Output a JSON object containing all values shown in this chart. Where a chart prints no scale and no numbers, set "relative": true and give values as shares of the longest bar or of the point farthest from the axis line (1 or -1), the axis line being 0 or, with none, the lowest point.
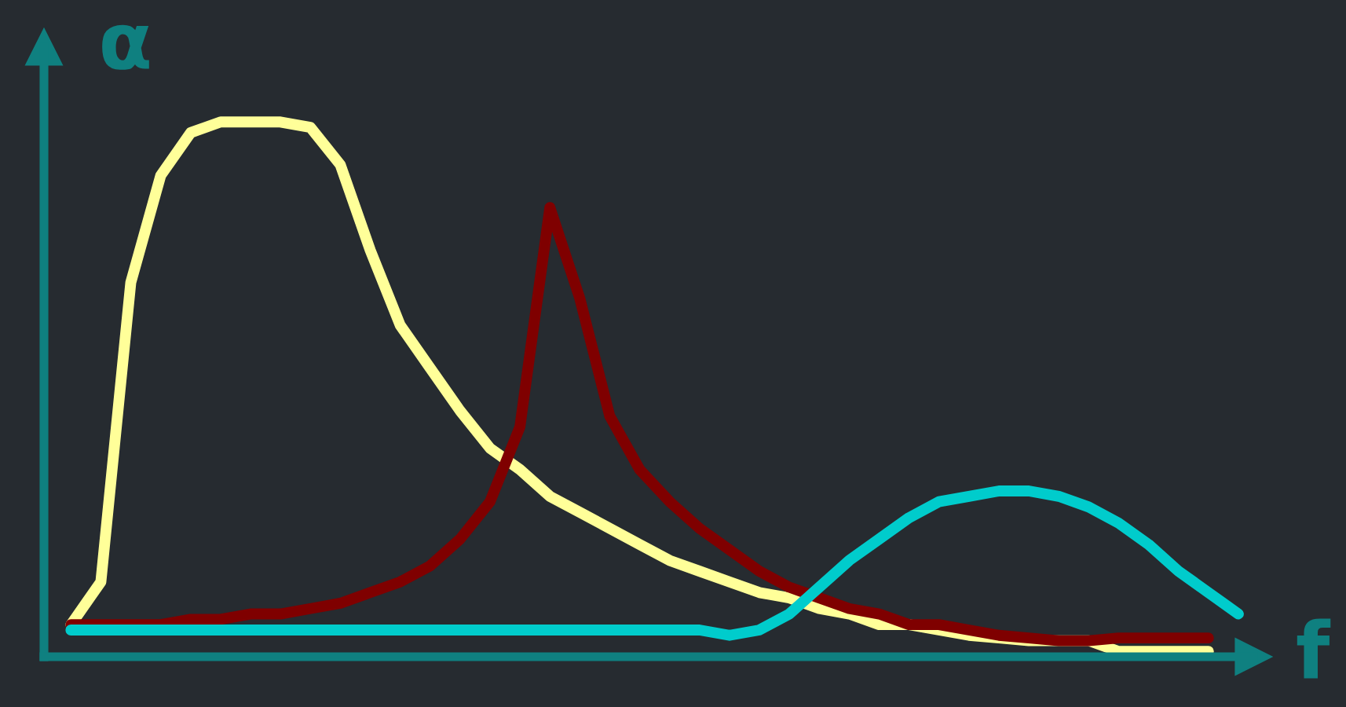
{
  "chart_data": {
    "type": "line",
    "relative": true,
    "xlabel": "f",
    "ylabel": "α",
    "grid": false,
    "legend": false,
    "marker": "none",
    "line_style": "solid",
    "categories": [
      null,
      null,
      null,
      null,
      null,
      null,
      null,
      null,
      null,
      null,
      null,
      null,
      null,
      null,
      null,
      null,
      null,
      null,
      null,
      null,
      null,
      null,
      null,
      null,
      null,
      null,
      null,
      null,
      null,
      null,
      null,
      null,
      null,
      null,
      null,
      null,
      null,
      null,
      null,
      null
    ],
    "series": [
      {
        "color": "#ffff99",
        "values": [
          0.06,
          0.14,
          0.7,
          0.9,
          0.98,
          1.0,
          1.0,
          1.0,
          0.99,
          0.92,
          0.76,
          0.62,
          0.54,
          0.46,
          0.39,
          0.35,
          0.3,
          0.27,
          0.24,
          0.21,
          0.18,
          0.16,
          0.14,
          0.12,
          0.11,
          0.09,
          0.08,
          0.06,
          0.06,
          0.05,
          0.04,
          0.035,
          0.03,
          0.03,
          0.03,
          0.01,
          0.01,
          0.01,
          0.01,
          null
        ]
      },
      {
        "color": "#7f0000",
        "values": [
          0.06,
          0.06,
          0.06,
          0.06,
          0.07,
          0.07,
          0.08,
          0.08,
          0.09,
          0.1,
          0.12,
          0.14,
          0.17,
          0.22,
          0.29,
          0.43,
          0.84,
          0.67,
          0.45,
          0.35,
          0.29,
          0.24,
          0.2,
          0.16,
          0.13,
          0.11,
          0.09,
          0.08,
          0.06,
          0.06,
          0.05,
          0.04,
          0.035,
          0.03,
          0.03,
          0.035,
          0.035,
          0.035,
          0.035,
          null
        ]
      },
      {
        "color": "#00cccc",
        "values": [
          0.05,
          0.05,
          0.05,
          0.05,
          0.05,
          0.05,
          0.05,
          0.05,
          0.05,
          0.05,
          0.05,
          0.05,
          0.05,
          0.05,
          0.05,
          0.05,
          0.05,
          0.05,
          0.05,
          0.05,
          0.05,
          0.05,
          0.04,
          0.05,
          0.08,
          0.13,
          0.18,
          0.22,
          0.26,
          0.29,
          0.3,
          0.31,
          0.31,
          0.3,
          0.28,
          0.25,
          0.21,
          0.16,
          0.12,
          0.08
        ]
      }
    ]
  }
}
